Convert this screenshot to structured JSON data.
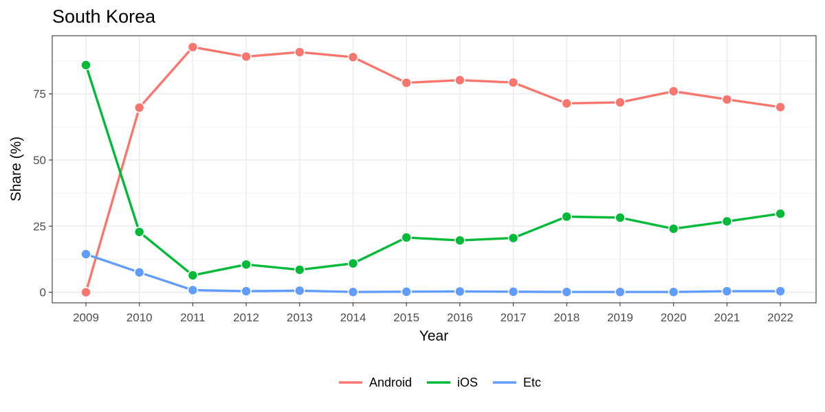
{
  "chart_data": {
    "type": "line",
    "title": "South Korea",
    "xlabel": "Year",
    "ylabel": "Share (%)",
    "x": [
      2009,
      2010,
      2011,
      2012,
      2013,
      2014,
      2015,
      2016,
      2017,
      2018,
      2019,
      2020,
      2021,
      2022
    ],
    "x_tick_labels": [
      "2009",
      "2010",
      "2011",
      "2012",
      "2013",
      "2014",
      "2015",
      "2016",
      "2017",
      "2018",
      "2019",
      "2020",
      "2021",
      "2022"
    ],
    "y_ticks": [
      0,
      25,
      50,
      75
    ],
    "y_tick_labels": [
      "0",
      "25",
      "50",
      "75"
    ],
    "ylim": [
      -4,
      97
    ],
    "grid": true,
    "legend_position": "bottom",
    "series": [
      {
        "name": "Android",
        "color": "#F8766D",
        "values": [
          0.0,
          69.8,
          92.7,
          89.1,
          90.8,
          88.9,
          79.2,
          80.2,
          79.3,
          71.4,
          71.8,
          76.0,
          72.9,
          70.0
        ]
      },
      {
        "name": "iOS",
        "color": "#00BA38",
        "values": [
          85.9,
          22.8,
          6.4,
          10.5,
          8.5,
          10.9,
          20.7,
          19.6,
          20.5,
          28.6,
          28.2,
          24.0,
          26.8,
          29.7
        ]
      },
      {
        "name": "Etc",
        "color": "#619CFF",
        "values": [
          14.4,
          7.5,
          0.8,
          0.4,
          0.6,
          0.1,
          0.2,
          0.3,
          0.2,
          0.1,
          0.1,
          0.1,
          0.4,
          0.4
        ]
      }
    ]
  }
}
